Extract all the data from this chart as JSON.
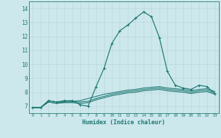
{
  "xlabel": "Humidex (Indice chaleur)",
  "xlim": [
    -0.5,
    23.5
  ],
  "ylim": [
    6.5,
    14.5
  ],
  "yticks": [
    7,
    8,
    9,
    10,
    11,
    12,
    13,
    14
  ],
  "xticks": [
    0,
    1,
    2,
    3,
    4,
    5,
    6,
    7,
    8,
    9,
    10,
    11,
    12,
    13,
    14,
    15,
    16,
    17,
    18,
    19,
    20,
    21,
    22,
    23
  ],
  "bg_color": "#cce8ec",
  "grid_color": "#b8d8dc",
  "line_color": "#1e7872",
  "line1": [
    6.9,
    6.9,
    7.4,
    7.3,
    7.4,
    7.4,
    7.1,
    7.0,
    8.4,
    9.7,
    11.5,
    12.4,
    12.8,
    13.3,
    13.75,
    13.4,
    11.9,
    9.5,
    8.5,
    8.3,
    8.2,
    8.5,
    8.4,
    7.9
  ],
  "line2": [
    6.9,
    6.9,
    7.4,
    7.3,
    7.3,
    7.35,
    7.4,
    7.55,
    7.7,
    7.85,
    7.95,
    8.05,
    8.15,
    8.2,
    8.3,
    8.35,
    8.4,
    8.3,
    8.25,
    8.2,
    8.1,
    8.2,
    8.25,
    8.05
  ],
  "line3": [
    6.9,
    6.9,
    7.3,
    7.2,
    7.3,
    7.3,
    7.3,
    7.35,
    7.55,
    7.7,
    7.85,
    7.95,
    8.05,
    8.1,
    8.2,
    8.25,
    8.3,
    8.2,
    8.15,
    8.1,
    8.0,
    8.1,
    8.15,
    7.95
  ],
  "line4": [
    6.9,
    6.9,
    7.3,
    7.2,
    7.25,
    7.25,
    7.2,
    7.25,
    7.45,
    7.6,
    7.75,
    7.85,
    7.95,
    8.0,
    8.1,
    8.15,
    8.2,
    8.1,
    8.05,
    8.0,
    7.9,
    8.0,
    8.05,
    7.85
  ]
}
